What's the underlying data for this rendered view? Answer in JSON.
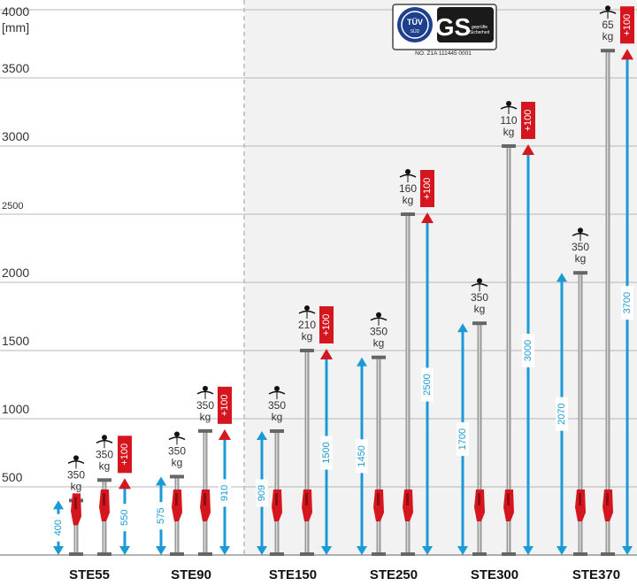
{
  "colors": {
    "arrow": "#1a9ad6",
    "red": "#d5161f",
    "pole": "#9a9a9a",
    "grid": "#b7b7b7",
    "panel": "#f2f2f2",
    "text": "#333333"
  },
  "chart_data": {
    "type": "bar",
    "ylim": [
      0,
      4000
    ],
    "yticks": [
      {
        "value": 500,
        "label": "500"
      },
      {
        "value": 1000,
        "label": "1000"
      },
      {
        "value": 1500,
        "label": "1500"
      },
      {
        "value": 2000,
        "label": "2000"
      },
      {
        "value": 2500,
        "label": "2500"
      },
      {
        "value": 3000,
        "label": "3000"
      },
      {
        "value": 3500,
        "label": "3500"
      },
      {
        "value": 4000,
        "label": "4000"
      }
    ],
    "yunit": "[mm]",
    "categories": [
      "STE55",
      "STE90",
      "STE150",
      "STE250",
      "STE300",
      "STE370"
    ],
    "series": [
      {
        "values": [
          400,
          575,
          909,
          1450,
          1700,
          2070
        ],
        "labels": [
          "400",
          "575",
          "909",
          "1450",
          "1700",
          "2070"
        ]
      },
      {
        "values": [
          550,
          910,
          1500,
          2500,
          3000,
          3700
        ],
        "labels": [
          "550",
          "910",
          "1500",
          "2500",
          "3000",
          "3700"
        ]
      }
    ],
    "load_min": [
      "350",
      "350",
      "350",
      "350",
      "350",
      "350"
    ],
    "load_max": [
      "350",
      "350",
      "210",
      "160",
      "110",
      "65"
    ],
    "load_unit": "kg",
    "extension_label": "+100",
    "grid": true
  },
  "certification": {
    "tuv": "TÜV",
    "tuv_sub": "SÜD",
    "gs": "GS",
    "gs_line1": "geprüfte",
    "gs_line2": "Sicherheit",
    "number": "NO. Z1A 111445 0001"
  }
}
